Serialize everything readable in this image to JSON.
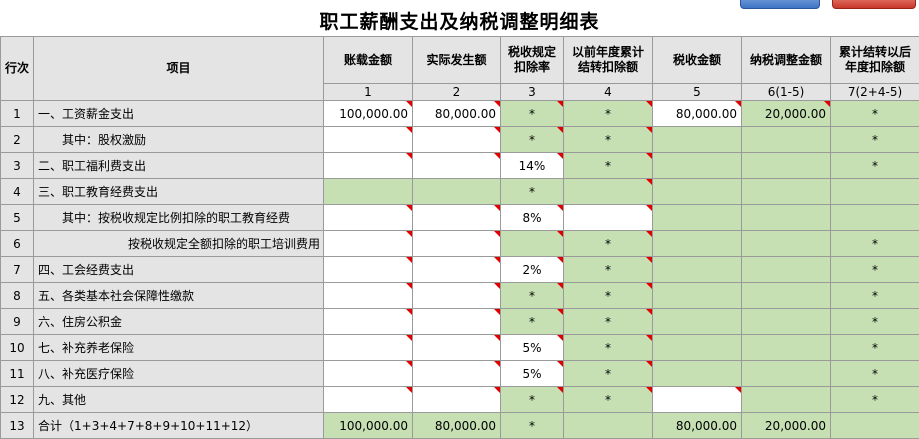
{
  "title": "职工薪酬支出及纳税调整明细表",
  "columns": {
    "row_no": "行次",
    "item": "项目",
    "c1": "账载金额",
    "c2": "实际发生额",
    "c3_l1": "税收规定",
    "c3_l2": "扣除率",
    "c4_l1": "以前年度累计",
    "c4_l2": "结转扣除额",
    "c5": "税收金额",
    "c6": "纳税调整金额",
    "c7_l1": "累计结转以后",
    "c7_l2": "年度扣除额"
  },
  "col_numbers": [
    "1",
    "2",
    "3",
    "4",
    "5",
    "6(1-5)",
    "7(2+4-5)"
  ],
  "rows": [
    {
      "no": "1",
      "item": "一、工资薪金支出",
      "c1": "100,000.00",
      "c2": "80,000.00",
      "c3": "*",
      "c4": "*",
      "c5": "80,000.00",
      "c6": "20,000.00",
      "c7": "*"
    },
    {
      "no": "2",
      "item": "其中：股权激励",
      "c1": "",
      "c2": "",
      "c3": "*",
      "c4": "*",
      "c5": "",
      "c6": "",
      "c7": "*"
    },
    {
      "no": "3",
      "item": "二、职工福利费支出",
      "c1": "",
      "c2": "",
      "c3": "14%",
      "c4": "*",
      "c5": "",
      "c6": "",
      "c7": "*"
    },
    {
      "no": "4",
      "item": "三、职工教育经费支出",
      "c1": "",
      "c2": "",
      "c3": "*",
      "c4": "",
      "c5": "",
      "c6": "",
      "c7": ""
    },
    {
      "no": "5",
      "item": "其中：按税收规定比例扣除的职工教育经费",
      "c1": "",
      "c2": "",
      "c3": "8%",
      "c4": "",
      "c5": "",
      "c6": "",
      "c7": ""
    },
    {
      "no": "6",
      "item": "按税收规定全额扣除的职工培训费用",
      "c1": "",
      "c2": "",
      "c3": "",
      "c4": "*",
      "c5": "",
      "c6": "",
      "c7": "*"
    },
    {
      "no": "7",
      "item": "四、工会经费支出",
      "c1": "",
      "c2": "",
      "c3": "2%",
      "c4": "*",
      "c5": "",
      "c6": "",
      "c7": "*"
    },
    {
      "no": "8",
      "item": "五、各类基本社会保障性缴款",
      "c1": "",
      "c2": "",
      "c3": "*",
      "c4": "*",
      "c5": "",
      "c6": "",
      "c7": "*"
    },
    {
      "no": "9",
      "item": "六、住房公积金",
      "c1": "",
      "c2": "",
      "c3": "*",
      "c4": "*",
      "c5": "",
      "c6": "",
      "c7": "*"
    },
    {
      "no": "10",
      "item": "七、补充养老保险",
      "c1": "",
      "c2": "",
      "c3": "5%",
      "c4": "*",
      "c5": "",
      "c6": "",
      "c7": "*"
    },
    {
      "no": "11",
      "item": "八、补充医疗保险",
      "c1": "",
      "c2": "",
      "c3": "5%",
      "c4": "*",
      "c5": "",
      "c6": "",
      "c7": "*"
    },
    {
      "no": "12",
      "item": "九、其他",
      "c1": "",
      "c2": "",
      "c3": "*",
      "c4": "*",
      "c5": "",
      "c6": "",
      "c7": "*"
    },
    {
      "no": "13",
      "item": "合计（1+3+4+7+8+9+10+11+12）",
      "c1": "100,000.00",
      "c2": "80,000.00",
      "c3": "*",
      "c4": "",
      "c5": "80,000.00",
      "c6": "20,000.00",
      "c7": ""
    }
  ],
  "cell_colors": {
    "input": "#ffffff",
    "calculated": "#c6e0b4",
    "header": "#e4e4e4",
    "comment_marker": "#e00000"
  }
}
